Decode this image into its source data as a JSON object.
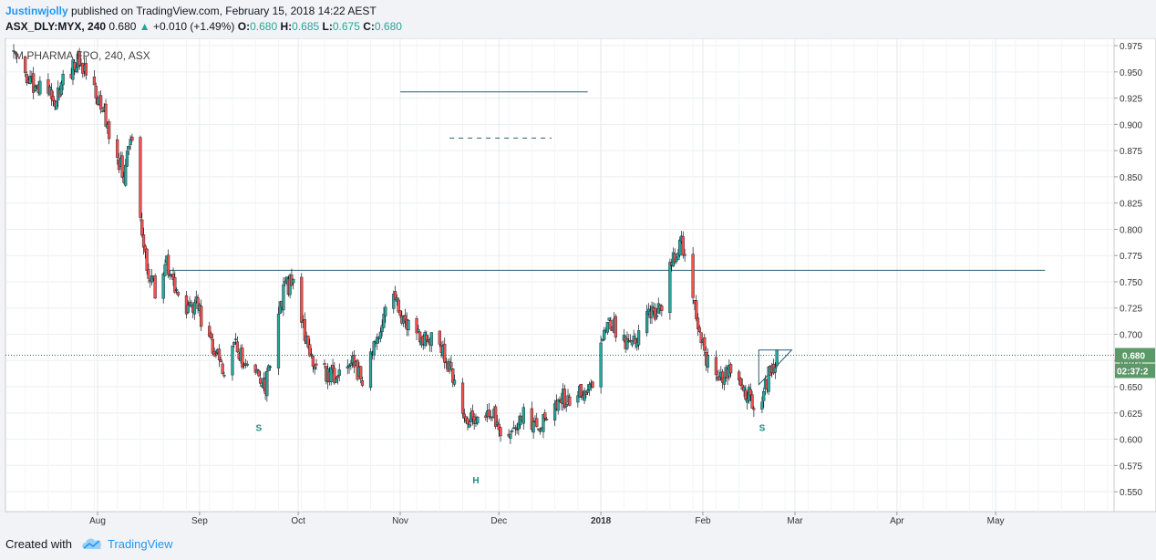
{
  "header": {
    "author": "Justinwjolly",
    "published": "published on TradingView.com, February 15, 2018 14:22 AEST",
    "symbol": "ASX_DLY:MYX, 240",
    "last": "0.680",
    "change_arrow": "▲",
    "change": "+0.010 (+1.49%)",
    "o_label": "O:",
    "o_value": "0.680",
    "h_label": "H:",
    "h_value": "0.685",
    "l_label": "L:",
    "l_value": "0.675",
    "c_label": "C:",
    "c_value": "0.680"
  },
  "footer": {
    "created_with": "Created with",
    "brand": "TradingView",
    "logo_icon": "cloud-logo-icon"
  },
  "chart_data": {
    "type": "candlestick",
    "title": "M PHARMA FPO, 240, ASX",
    "x_ticks": [
      {
        "label": "Aug",
        "date": "2017-08-01"
      },
      {
        "label": "Sep",
        "date": "2017-09-01"
      },
      {
        "label": "Oct",
        "date": "2017-10-01"
      },
      {
        "label": "Nov",
        "date": "2017-11-01"
      },
      {
        "label": "Dec",
        "date": "2017-12-01"
      },
      {
        "label": "2018",
        "date": "2018-01-01"
      },
      {
        "label": "Feb",
        "date": "2018-02-01"
      },
      {
        "label": "Mar",
        "date": "2018-03-01"
      },
      {
        "label": "Apr",
        "date": "2018-04-01"
      },
      {
        "label": "May",
        "date": "2018-05-01"
      }
    ],
    "x_range": [
      "2017-07-04",
      "2018-06-06"
    ],
    "y_ticks": [
      "0.550",
      "0.575",
      "0.600",
      "0.625",
      "0.650",
      "0.675",
      "0.700",
      "0.725",
      "0.750",
      "0.775",
      "0.800",
      "0.825",
      "0.850",
      "0.875",
      "0.900",
      "0.925",
      "0.950",
      "0.975"
    ],
    "ylim": [
      0.531,
      0.982
    ],
    "grid": true,
    "last_price": {
      "label": "0.680",
      "value": 0.68
    },
    "countdown": "02:37:2",
    "colors": {
      "up": "#26a69a",
      "down": "#ef5350",
      "wick": "#131722",
      "line": "#2b5f75",
      "label_bg": "#5b9a68"
    },
    "price_path": [
      [
        "2017-07-06",
        0.97
      ],
      [
        "2017-07-09",
        0.955
      ],
      [
        "2017-07-13",
        0.935
      ],
      [
        "2017-07-16",
        0.945
      ],
      [
        "2017-07-19",
        0.925
      ],
      [
        "2017-07-22",
        0.945
      ],
      [
        "2017-07-26",
        0.96
      ],
      [
        "2017-07-29",
        0.95
      ],
      [
        "2017-08-02",
        0.92
      ],
      [
        "2017-08-06",
        0.88
      ],
      [
        "2017-08-09",
        0.85
      ],
      [
        "2017-08-11",
        0.89
      ],
      [
        "2017-08-13",
        0.84
      ],
      [
        "2017-08-16",
        0.76
      ],
      [
        "2017-08-19",
        0.74
      ],
      [
        "2017-08-22",
        0.77
      ],
      [
        "2017-08-25",
        0.74
      ],
      [
        "2017-08-28",
        0.72
      ],
      [
        "2017-08-31",
        0.73
      ],
      [
        "2017-09-03",
        0.7
      ],
      [
        "2017-09-06",
        0.68
      ],
      [
        "2017-09-09",
        0.665
      ],
      [
        "2017-09-12",
        0.69
      ],
      [
        "2017-09-15",
        0.67
      ],
      [
        "2017-09-18",
        0.66
      ],
      [
        "2017-09-21",
        0.65
      ],
      [
        "2017-09-24",
        0.705
      ],
      [
        "2017-09-27",
        0.745
      ],
      [
        "2017-09-30",
        0.75
      ],
      [
        "2017-10-03",
        0.7
      ],
      [
        "2017-10-06",
        0.67
      ],
      [
        "2017-10-09",
        0.665
      ],
      [
        "2017-10-12",
        0.66
      ],
      [
        "2017-10-15",
        0.675
      ],
      [
        "2017-10-18",
        0.67
      ],
      [
        "2017-10-21",
        0.65
      ],
      [
        "2017-10-24",
        0.69
      ],
      [
        "2017-10-27",
        0.72
      ],
      [
        "2017-10-30",
        0.735
      ],
      [
        "2017-11-02",
        0.71
      ],
      [
        "2017-11-05",
        0.7
      ],
      [
        "2017-11-08",
        0.695
      ],
      [
        "2017-11-11",
        0.7
      ],
      [
        "2017-11-14",
        0.685
      ],
      [
        "2017-11-17",
        0.66
      ],
      [
        "2017-11-20",
        0.63
      ],
      [
        "2017-11-23",
        0.615
      ],
      [
        "2017-11-26",
        0.63
      ],
      [
        "2017-11-29",
        0.625
      ],
      [
        "2017-12-02",
        0.605
      ],
      [
        "2017-12-05",
        0.61
      ],
      [
        "2017-12-08",
        0.625
      ],
      [
        "2017-12-11",
        0.61
      ],
      [
        "2017-12-14",
        0.615
      ],
      [
        "2017-12-17",
        0.625
      ],
      [
        "2017-12-20",
        0.64
      ],
      [
        "2017-12-23",
        0.635
      ],
      [
        "2017-12-26",
        0.645
      ],
      [
        "2017-12-29",
        0.645
      ],
      [
        "2018-01-01",
        0.69
      ],
      [
        "2018-01-04",
        0.71
      ],
      [
        "2018-01-07",
        0.7
      ],
      [
        "2018-01-10",
        0.69
      ],
      [
        "2018-01-13",
        0.705
      ],
      [
        "2018-01-16",
        0.72
      ],
      [
        "2018-01-19",
        0.725
      ],
      [
        "2018-01-22",
        0.76
      ],
      [
        "2018-01-25",
        0.79
      ],
      [
        "2018-01-28",
        0.76
      ],
      [
        "2018-01-31",
        0.7
      ],
      [
        "2018-02-02",
        0.675
      ],
      [
        "2018-02-05",
        0.665
      ],
      [
        "2018-02-08",
        0.66
      ],
      [
        "2018-02-11",
        0.67
      ],
      [
        "2018-02-13",
        0.64
      ],
      [
        "2018-02-15",
        0.645
      ],
      [
        "2018-02-17",
        0.62
      ],
      [
        "2018-02-19",
        0.64
      ],
      [
        "2018-02-21",
        0.66
      ],
      [
        "2018-02-23",
        0.675
      ],
      [
        "2018-02-25",
        0.68
      ]
    ],
    "drawings": {
      "neckline": {
        "from": [
          "2017-08-22",
          0.761
        ],
        "to": [
          "2018-05-16",
          0.761
        ]
      },
      "legend_solid_line": {
        "from": [
          "2017-11-01",
          0.931
        ],
        "to": [
          "2017-12-28",
          0.931
        ]
      },
      "legend_dashed_line": {
        "from": [
          "2017-11-16",
          0.887
        ],
        "to": [
          "2017-12-17",
          0.887
        ]
      },
      "triangle": [
        [
          "2018-02-18",
          0.685
        ],
        [
          "2018-02-28",
          0.685
        ],
        [
          "2018-02-18",
          0.652
        ]
      ],
      "last_price_dotted": {
        "from": [
          "2017-07-04",
          0.68
        ],
        "to": [
          "2018-06-06",
          0.68
        ]
      }
    },
    "annotations": [
      {
        "text": "S",
        "date": "2017-09-19",
        "value": 0.608
      },
      {
        "text": "H",
        "date": "2017-11-24",
        "value": 0.558
      },
      {
        "text": "S",
        "date": "2018-02-19",
        "value": 0.608
      }
    ]
  }
}
